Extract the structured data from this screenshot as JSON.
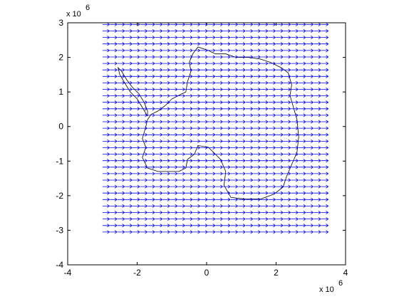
{
  "chart_data": {
    "type": "quiver",
    "title": "",
    "xlabel": "",
    "ylabel": "",
    "xlim": [
      -4,
      4
    ],
    "ylim": [
      -4,
      3
    ],
    "x_ticks": [
      -4,
      -2,
      0,
      2,
      4
    ],
    "y_ticks": [
      -4,
      -3,
      -2,
      -1,
      0,
      1,
      2,
      3
    ],
    "x_tick_labels": [
      "-4",
      "-2",
      "0",
      "2",
      "4"
    ],
    "y_tick_labels": [
      "-4",
      "-3",
      "-2",
      "-1",
      "0",
      "1",
      "2",
      "3"
    ],
    "x_multiplier": {
      "base": "x 10",
      "exponent": "6"
    },
    "y_multiplier": {
      "base": "x 10",
      "exponent": "6"
    },
    "grid": false,
    "series": [
      {
        "kind": "quiver-field",
        "color": "#0000ff",
        "x_range": [
          -3.0,
          3.3
        ],
        "y_range": [
          -3.05,
          2.95
        ],
        "rows": 33,
        "cols": 30,
        "u": 0.2,
        "v": 0.0
      },
      {
        "kind": "coastline",
        "color": "#000000",
        "points": [
          [
            -0.4,
            2.1
          ],
          [
            -0.25,
            2.3
          ],
          [
            0.05,
            2.2
          ],
          [
            0.25,
            2.1
          ],
          [
            0.55,
            2.1
          ],
          [
            0.85,
            2.0
          ],
          [
            1.2,
            2.0
          ],
          [
            1.55,
            1.95
          ],
          [
            1.85,
            1.85
          ],
          [
            2.15,
            1.7
          ],
          [
            2.35,
            1.55
          ],
          [
            2.45,
            1.2
          ],
          [
            2.4,
            0.9
          ],
          [
            2.5,
            0.55
          ],
          [
            2.6,
            0.2
          ],
          [
            2.65,
            -0.3
          ],
          [
            2.6,
            -0.75
          ],
          [
            2.45,
            -1.1
          ],
          [
            2.3,
            -1.45
          ],
          [
            2.2,
            -1.75
          ],
          [
            1.95,
            -1.95
          ],
          [
            1.55,
            -2.1
          ],
          [
            1.1,
            -2.1
          ],
          [
            0.7,
            -2.05
          ],
          [
            0.5,
            -1.7
          ],
          [
            0.55,
            -1.3
          ],
          [
            0.4,
            -0.95
          ],
          [
            0.2,
            -0.75
          ],
          [
            0.05,
            -0.6
          ],
          [
            -0.25,
            -0.55
          ],
          [
            -0.35,
            -0.8
          ],
          [
            -0.55,
            -0.95
          ],
          [
            -0.6,
            -1.2
          ],
          [
            -0.8,
            -1.3
          ],
          [
            -1.1,
            -1.3
          ],
          [
            -1.4,
            -1.3
          ],
          [
            -1.7,
            -1.2
          ],
          [
            -1.85,
            -0.9
          ],
          [
            -1.75,
            -0.6
          ],
          [
            -1.85,
            -0.35
          ],
          [
            -1.75,
            0.0
          ],
          [
            -1.7,
            0.2
          ],
          [
            -1.6,
            0.35
          ],
          [
            -1.4,
            0.45
          ],
          [
            -1.2,
            0.6
          ],
          [
            -1.0,
            0.8
          ],
          [
            -0.8,
            0.9
          ],
          [
            -0.6,
            1.0
          ],
          [
            -0.55,
            1.3
          ],
          [
            -0.45,
            1.6
          ],
          [
            -0.5,
            1.85
          ],
          [
            -0.4,
            2.1
          ]
        ]
      },
      {
        "kind": "coastline",
        "color": "#000000",
        "points": [
          [
            -1.7,
            0.3
          ],
          [
            -1.85,
            0.55
          ],
          [
            -2.0,
            0.8
          ],
          [
            -2.2,
            1.0
          ],
          [
            -2.35,
            1.25
          ],
          [
            -2.5,
            1.5
          ],
          [
            -2.55,
            1.7
          ],
          [
            -2.45,
            1.6
          ],
          [
            -2.3,
            1.35
          ],
          [
            -2.15,
            1.15
          ],
          [
            -1.95,
            0.95
          ],
          [
            -1.8,
            0.7
          ],
          [
            -1.7,
            0.45
          ],
          [
            -1.7,
            0.3
          ]
        ]
      }
    ]
  }
}
